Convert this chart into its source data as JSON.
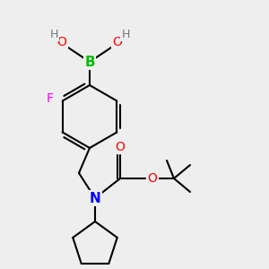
{
  "bg_color": "#eeeeee",
  "atom_colors": {
    "B": "#00bb00",
    "O": "#ff0000",
    "H": "#777777",
    "F": "#ee00ee",
    "N": "#0000ff",
    "C": "#000000"
  }
}
